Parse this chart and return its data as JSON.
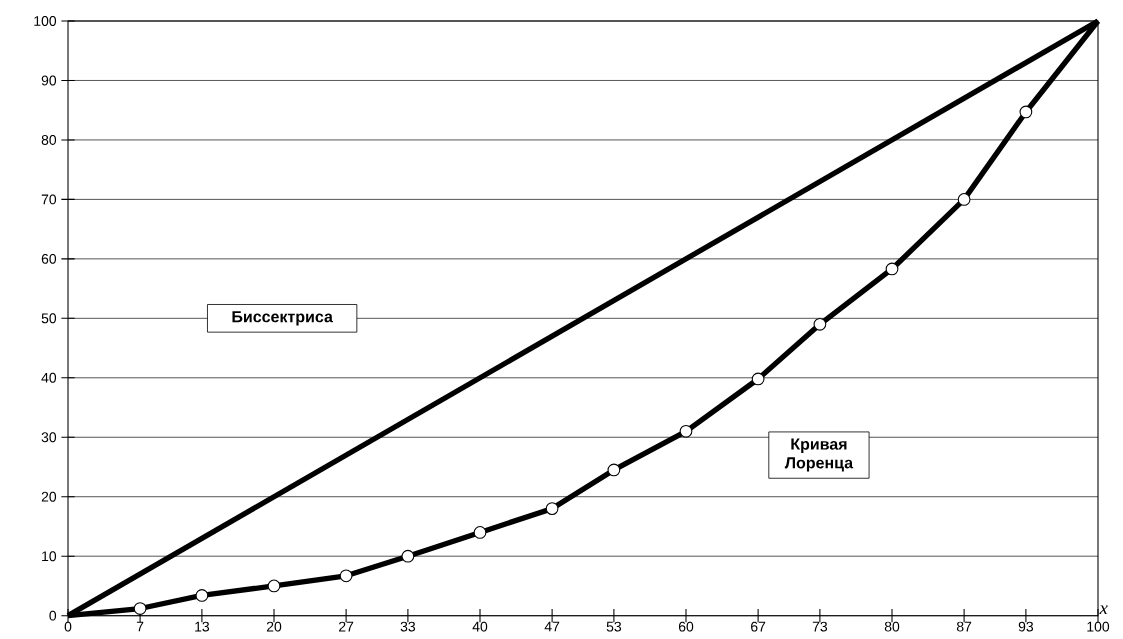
{
  "chart_data": {
    "type": "line",
    "xlabel": "x",
    "xlim": [
      0,
      100
    ],
    "ylim": [
      0,
      100
    ],
    "xticks": [
      0,
      7,
      13,
      20,
      27,
      33,
      40,
      47,
      53,
      60,
      67,
      73,
      80,
      87,
      93,
      100
    ],
    "yticks": [
      0,
      10,
      20,
      30,
      40,
      50,
      60,
      70,
      80,
      90,
      100
    ],
    "grid": "y",
    "legend": false,
    "line_style": "solid",
    "series": [
      {
        "name": "Биссектриса",
        "color": "#000000",
        "x": [
          0,
          100
        ],
        "values": [
          0,
          100
        ]
      },
      {
        "name": "Кривая Лоренца",
        "color": "#000000",
        "marker": "circle",
        "x": [
          0,
          7,
          13,
          20,
          27,
          33,
          40,
          47,
          53,
          60,
          67,
          73,
          80,
          87,
          93,
          100
        ],
        "values": [
          0,
          1.2,
          3.4,
          5,
          6.7,
          10,
          14,
          18,
          24.5,
          31,
          39.8,
          49,
          58.3,
          70,
          84.7,
          100
        ]
      }
    ]
  }
}
